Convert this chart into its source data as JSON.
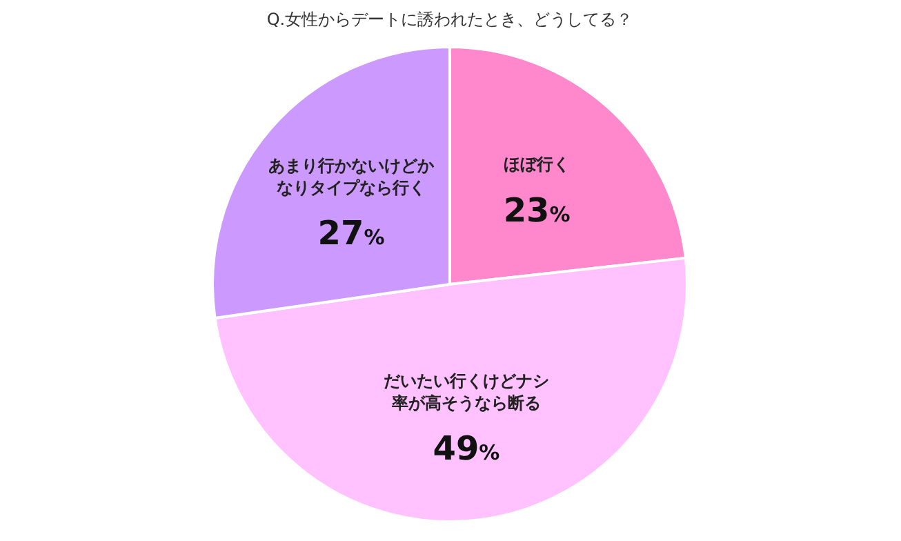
{
  "chart_data": {
    "type": "pie",
    "title": "Q.女性からデートに誘われたとき、どうしてる？",
    "categories": [
      "ほぼ行く",
      "だいたい行くけどナシ率が高そうなら断る",
      "あまり行かないけどかなりタイプなら行く"
    ],
    "values": [
      23,
      49,
      27
    ],
    "colors": [
      "#ff88cc",
      "#ffc2ff",
      "#cc99ff"
    ],
    "value_labels": [
      "23%",
      "49%",
      "27%"
    ]
  }
}
